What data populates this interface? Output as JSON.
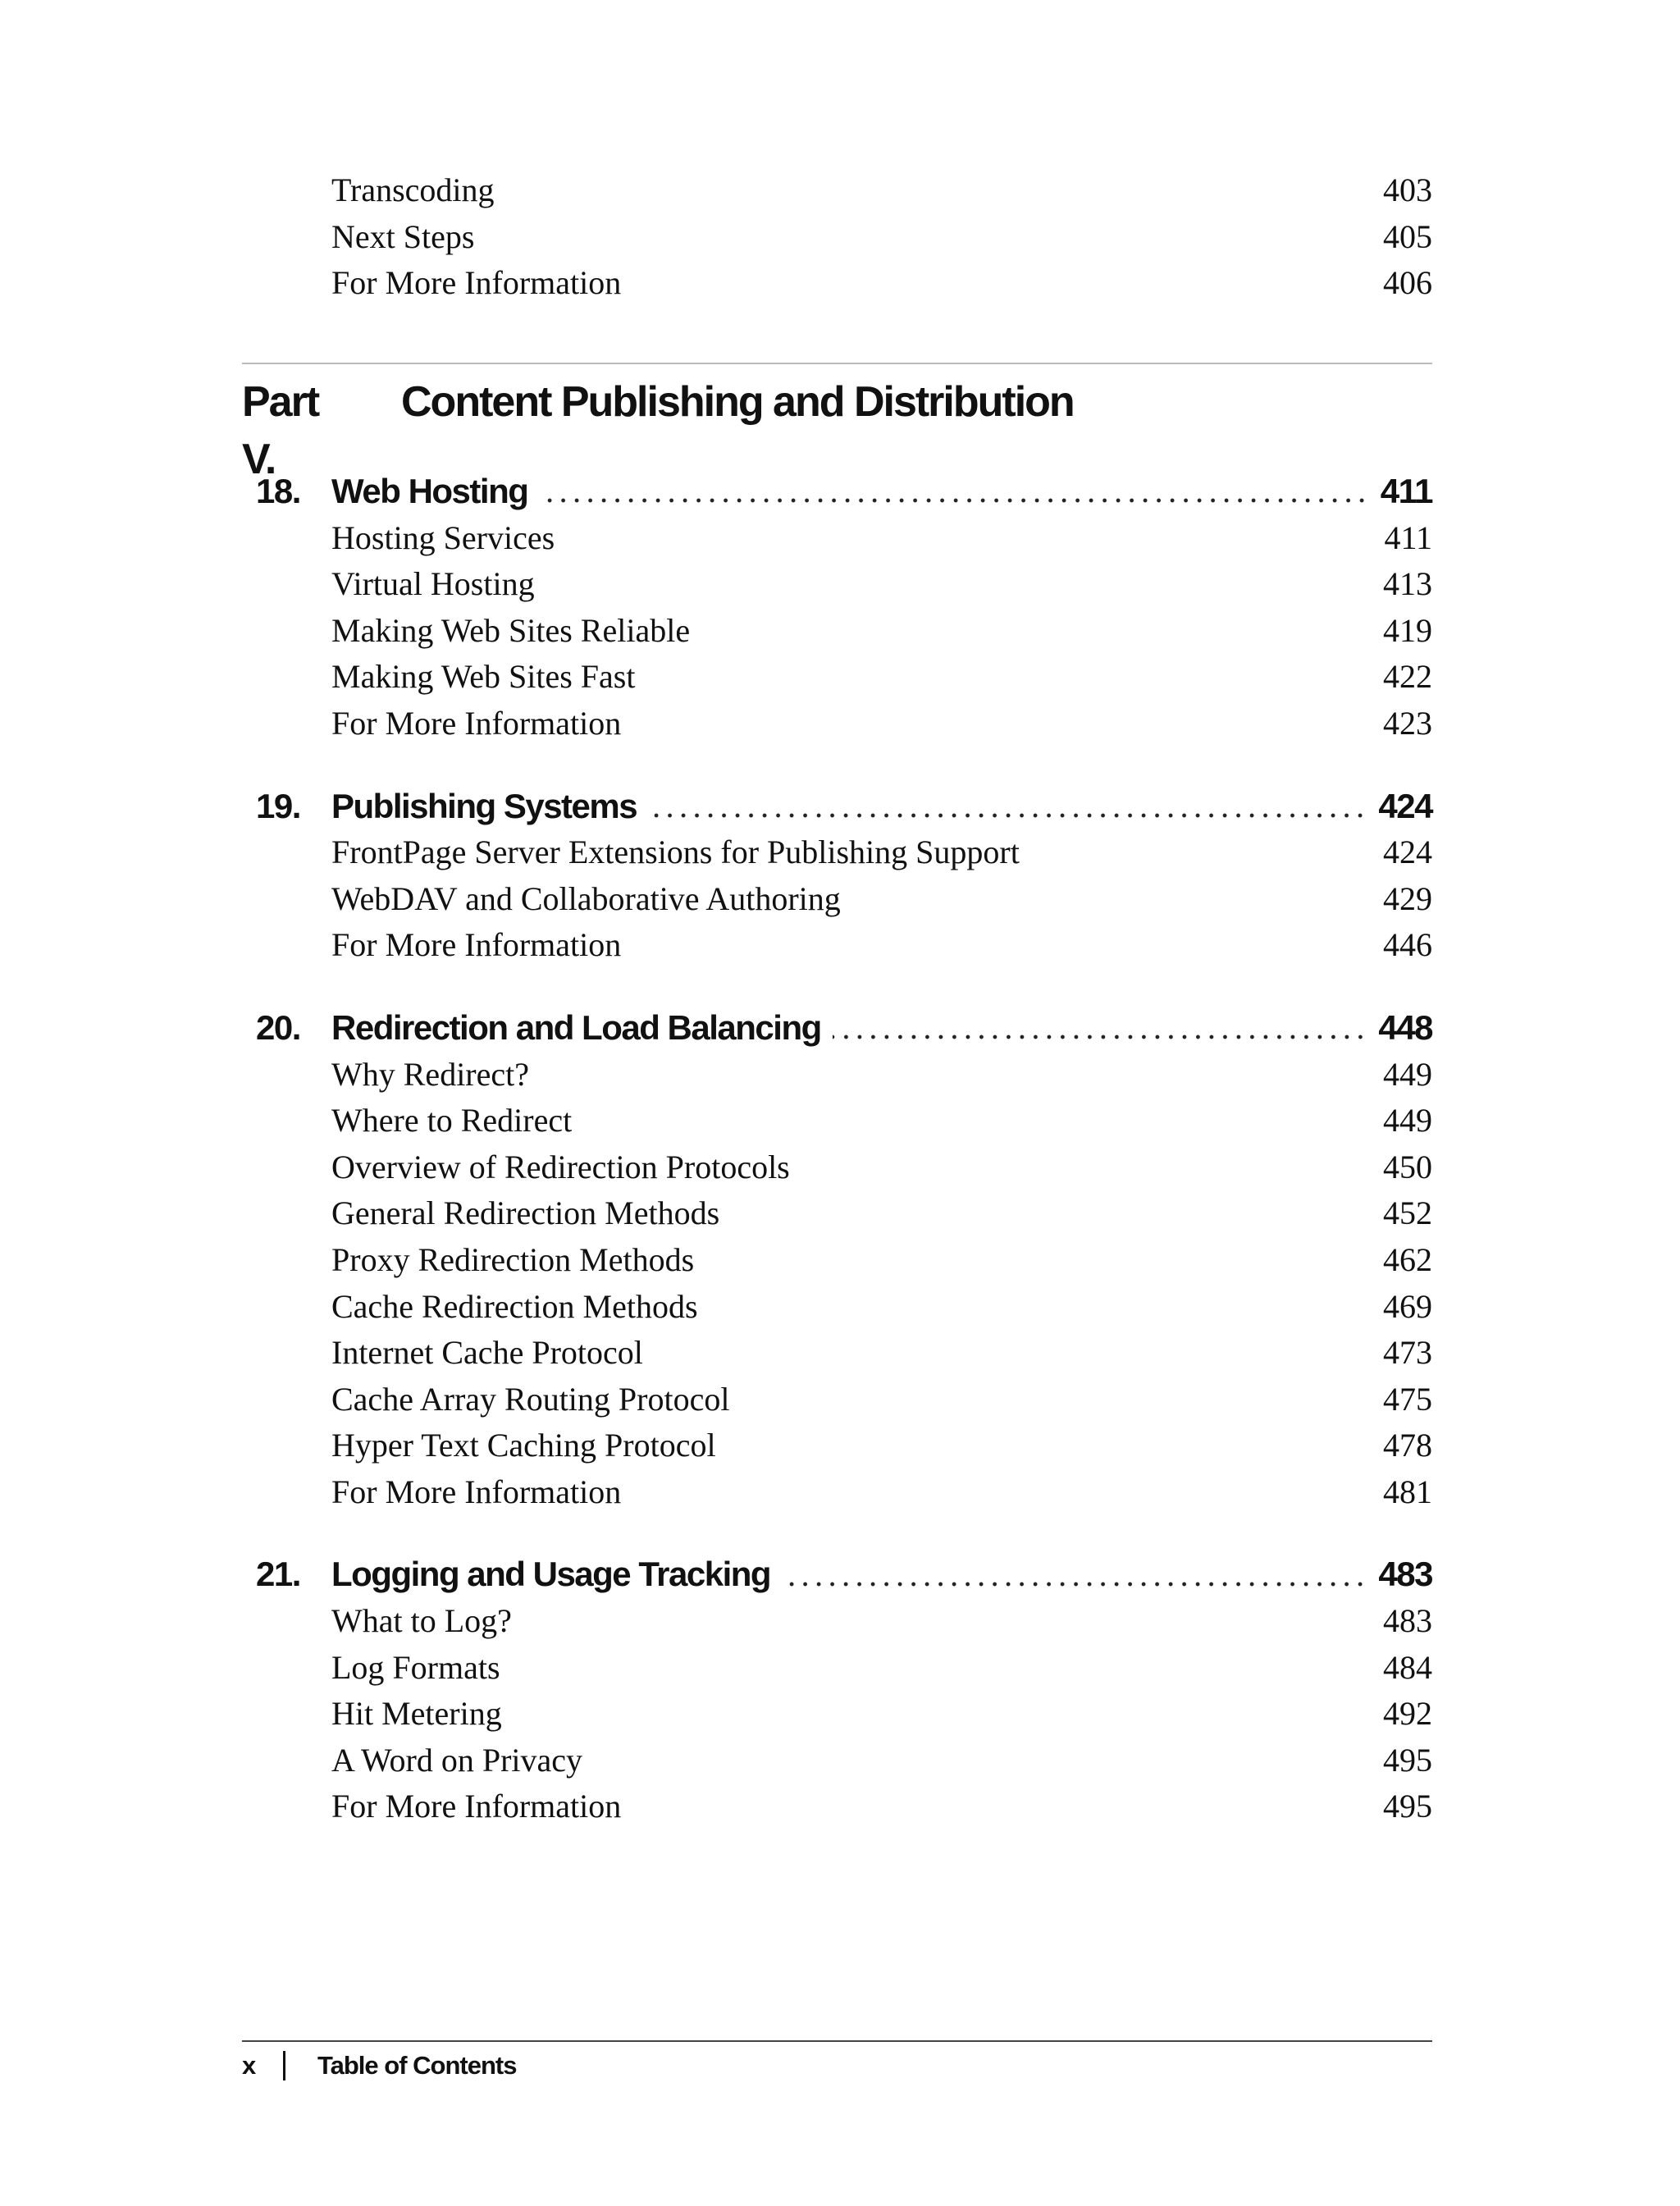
{
  "continued_entries": [
    {
      "title": "Transcoding",
      "page": "403"
    },
    {
      "title": "Next Steps",
      "page": "405"
    },
    {
      "title": "For More Information",
      "page": "406"
    }
  ],
  "part": {
    "number": "Part V.",
    "title": "Content Publishing and Distribution"
  },
  "chapters": [
    {
      "number": "18.",
      "title": "Web Hosting",
      "page": "411",
      "entries": [
        {
          "title": "Hosting Services",
          "page": "411"
        },
        {
          "title": "Virtual Hosting",
          "page": "413"
        },
        {
          "title": "Making Web Sites Reliable",
          "page": "419"
        },
        {
          "title": "Making Web Sites Fast",
          "page": "422"
        },
        {
          "title": "For More Information",
          "page": "423"
        }
      ]
    },
    {
      "number": "19.",
      "title": "Publishing Systems",
      "page": "424",
      "entries": [
        {
          "title": "FrontPage Server Extensions for Publishing Support",
          "page": "424"
        },
        {
          "title": "WebDAV and Collaborative Authoring",
          "page": "429"
        },
        {
          "title": "For More Information",
          "page": "446"
        }
      ]
    },
    {
      "number": "20.",
      "title": "Redirection and Load Balancing",
      "page": "448",
      "entries": [
        {
          "title": "Why Redirect?",
          "page": "449"
        },
        {
          "title": "Where to Redirect",
          "page": "449"
        },
        {
          "title": "Overview of Redirection Protocols",
          "page": "450"
        },
        {
          "title": "General Redirection Methods",
          "page": "452"
        },
        {
          "title": "Proxy Redirection Methods",
          "page": "462"
        },
        {
          "title": "Cache Redirection Methods",
          "page": "469"
        },
        {
          "title": "Internet Cache Protocol",
          "page": "473"
        },
        {
          "title": "Cache Array Routing Protocol",
          "page": "475"
        },
        {
          "title": "Hyper Text Caching Protocol",
          "page": "478"
        },
        {
          "title": "For More Information",
          "page": "481"
        }
      ]
    },
    {
      "number": "21.",
      "title": "Logging and Usage Tracking",
      "page": "483",
      "entries": [
        {
          "title": "What to Log?",
          "page": "483"
        },
        {
          "title": "Log Formats",
          "page": "484"
        },
        {
          "title": "Hit Metering",
          "page": "492"
        },
        {
          "title": "A Word on Privacy",
          "page": "495"
        },
        {
          "title": "For More Information",
          "page": "495"
        }
      ]
    }
  ],
  "footer": {
    "page_number": "x",
    "section": "Table of Contents"
  }
}
